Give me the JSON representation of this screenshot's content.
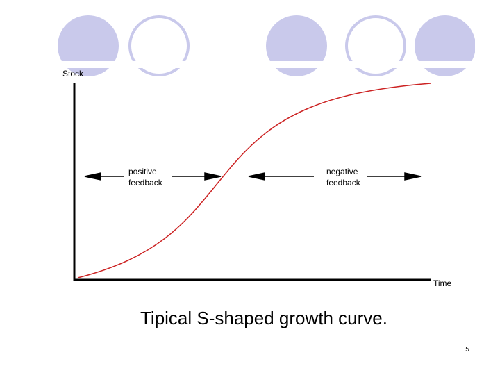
{
  "diagram": {
    "y_axis_label": "Stock",
    "x_axis_label": "Time",
    "phases": [
      {
        "label_lines": [
          "positive",
          "feedback"
        ]
      },
      {
        "label_lines": [
          "negative",
          "feedback"
        ]
      }
    ]
  },
  "caption": "Tipical S-shaped growth curve.",
  "page_number": "5"
}
